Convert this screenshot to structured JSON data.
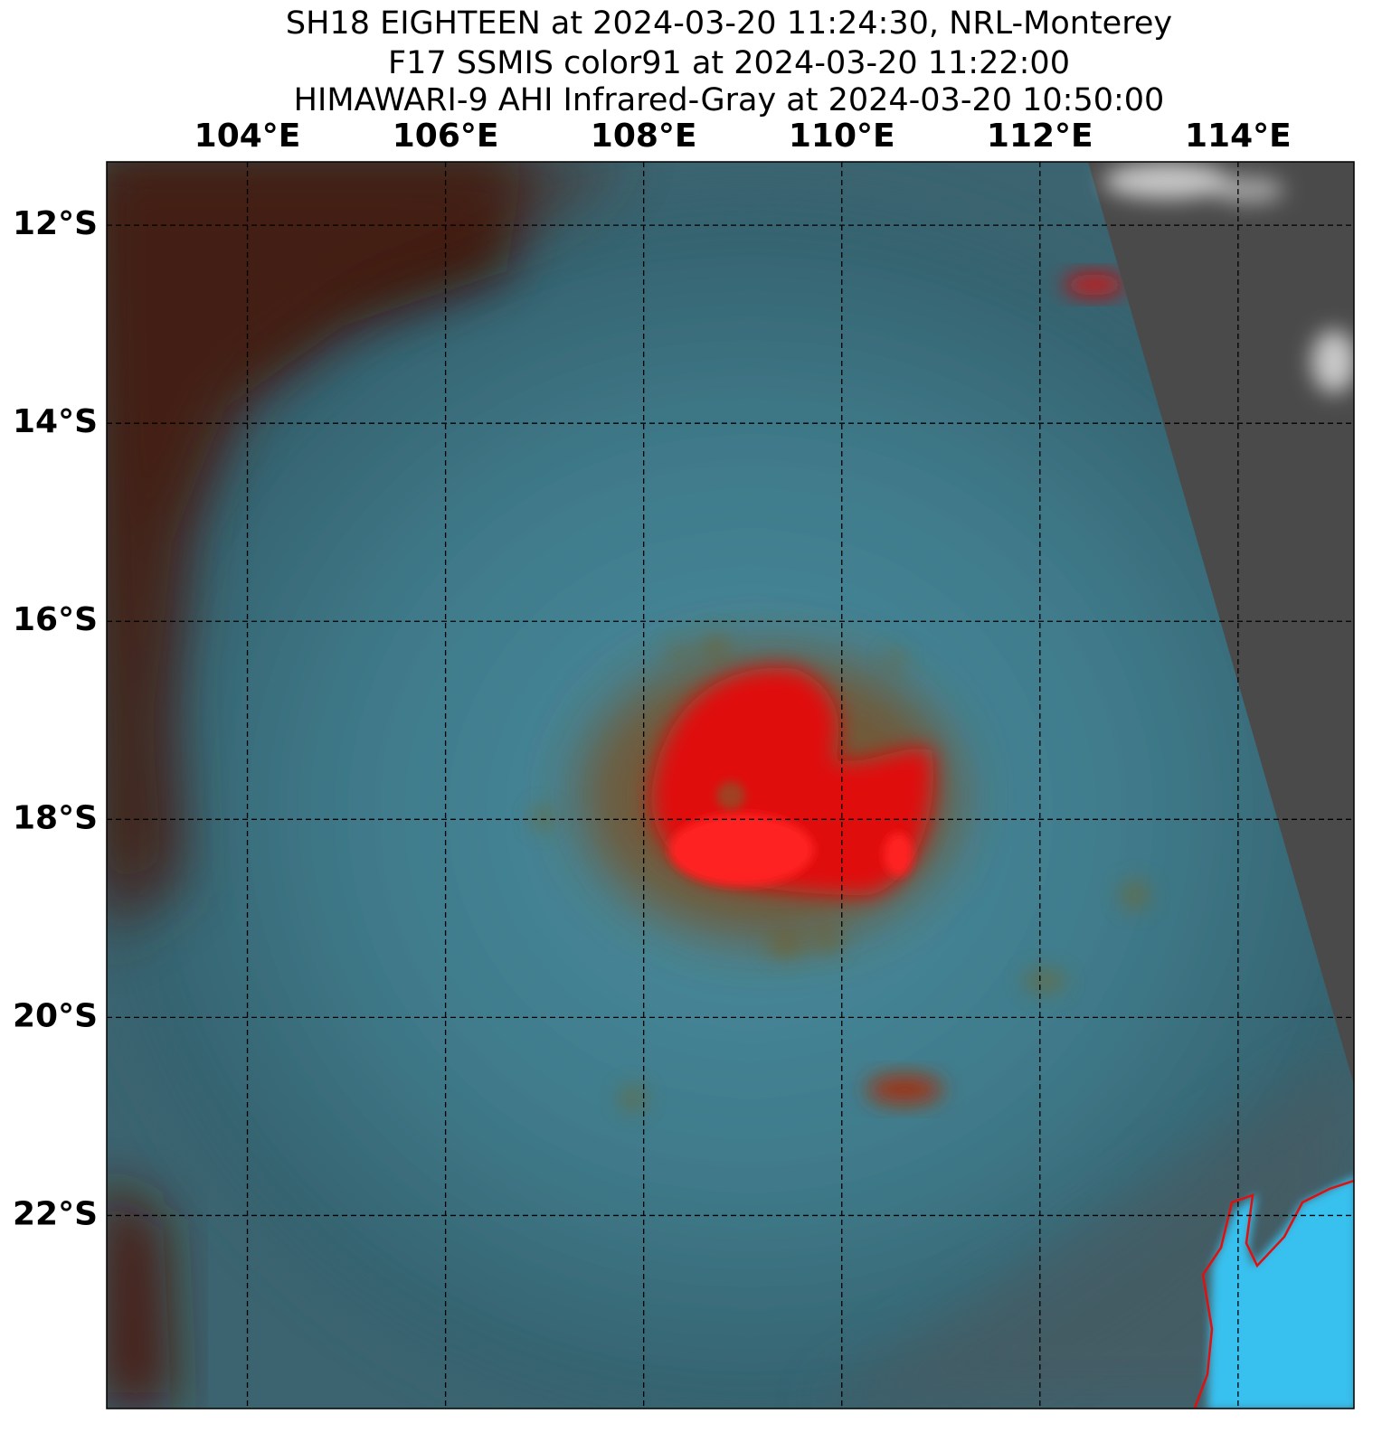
{
  "header": {
    "lines": [
      "SH18 EIGHTEEN at 2024-03-20 11:24:30, NRL-Monterey",
      "F17 SSMIS color91 at 2024-03-20 11:22:00",
      "HIMAWARI-9 AHI Infrared-Gray at 2024-03-20 10:50:00"
    ]
  },
  "map": {
    "lon_range": [
      102.58,
      115.17
    ],
    "lat_range": [
      -11.36,
      -23.95
    ],
    "lon_ticks": [
      {
        "value": 104,
        "label": "104°E"
      },
      {
        "value": 106,
        "label": "106°E"
      },
      {
        "value": 108,
        "label": "108°E"
      },
      {
        "value": 110,
        "label": "110°E"
      },
      {
        "value": 112,
        "label": "112°E"
      },
      {
        "value": 114,
        "label": "114°E"
      }
    ],
    "lat_ticks": [
      {
        "value": -12,
        "label": "12°S"
      },
      {
        "value": -14,
        "label": "14°S"
      },
      {
        "value": -16,
        "label": "16°S"
      },
      {
        "value": -18,
        "label": "18°S"
      },
      {
        "value": -20,
        "label": "20°S"
      },
      {
        "value": -22,
        "label": "22°S"
      }
    ]
  }
}
